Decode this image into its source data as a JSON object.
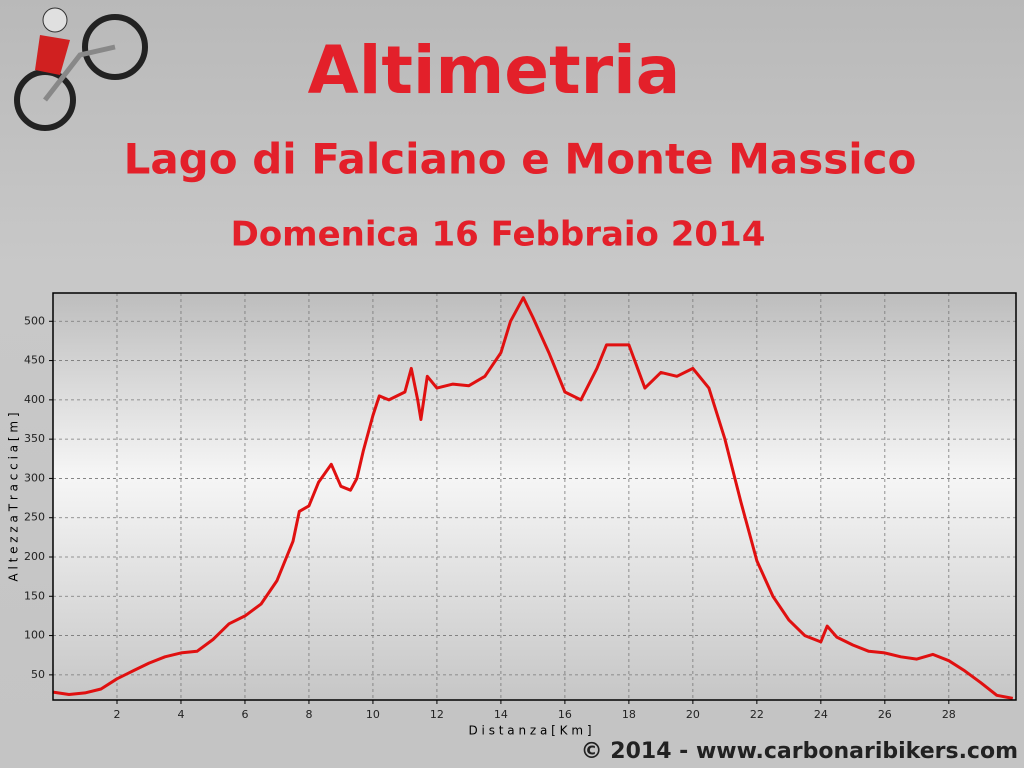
{
  "chart_data": {
    "type": "line",
    "title": "Altimetria",
    "subtitle": "Lago di Falciano e Monte Massico",
    "date": "Domenica 16 Febbraio 2014",
    "footer": "© 2014 - www.carbonaribikers.com",
    "x_label": "D i s t a n z a   [ K m ]",
    "y_label": "A l t e z z a   T r a c c i a   [ m ]",
    "x": [
      0,
      0.5,
      1,
      1.5,
      2,
      2.5,
      3,
      3.5,
      4,
      4.5,
      5,
      5.5,
      6,
      6.5,
      7,
      7.5,
      7.7,
      8,
      8.3,
      8.7,
      9,
      9.3,
      9.5,
      9.7,
      10,
      10.2,
      10.5,
      11,
      11.2,
      11.4,
      11.5,
      11.7,
      12,
      12.5,
      13,
      13.5,
      14,
      14.3,
      14.7,
      15,
      15.5,
      16,
      16.5,
      17,
      17.3,
      17.6,
      18,
      18.5,
      19,
      19.5,
      20,
      20.5,
      21,
      21.5,
      22,
      22.5,
      23,
      23.5,
      24,
      24.2,
      24.5,
      25,
      25.5,
      26,
      26.5,
      27,
      27.5,
      28,
      28.5,
      29,
      29.5,
      30
    ],
    "series": [
      {
        "name": "Altezza",
        "color": "#e01010",
        "values": [
          28,
          25,
          27,
          32,
          45,
          55,
          65,
          73,
          78,
          80,
          95,
          115,
          125,
          140,
          170,
          220,
          258,
          265,
          295,
          318,
          290,
          285,
          300,
          335,
          380,
          405,
          400,
          410,
          440,
          400,
          375,
          430,
          415,
          420,
          418,
          430,
          460,
          500,
          530,
          505,
          460,
          410,
          400,
          440,
          470,
          470,
          470,
          415,
          435,
          430,
          440,
          415,
          350,
          270,
          195,
          150,
          120,
          100,
          92,
          112,
          98,
          88,
          80,
          78,
          73,
          70,
          76,
          68,
          55,
          40,
          24,
          20
        ]
      }
    ],
    "xlim": [
      0,
      30.1
    ],
    "ylim": [
      18,
      536
    ],
    "xticks": [
      2,
      4,
      6,
      8,
      10,
      12,
      14,
      16,
      18,
      20,
      22,
      24,
      26,
      28
    ],
    "yticks": [
      50,
      100,
      150,
      200,
      250,
      300,
      350,
      400,
      450,
      500
    ],
    "grid": true
  }
}
